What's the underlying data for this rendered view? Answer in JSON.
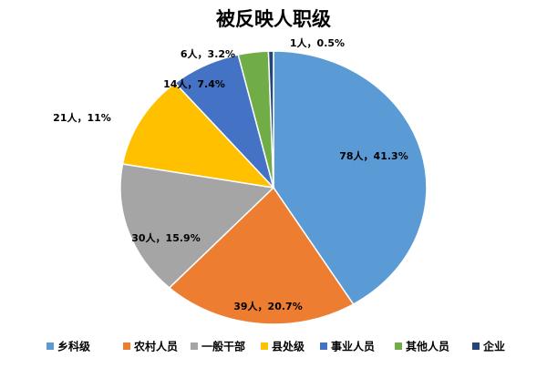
{
  "chart_data": {
    "type": "pie",
    "title": "被反映人职级",
    "categories": [
      "乡科级",
      "农村人员",
      "一般干部",
      "县处级",
      "事业人员",
      "其他人员",
      "企业"
    ],
    "values": [
      78,
      39,
      30,
      21,
      14,
      6,
      1
    ],
    "value_labels": [
      "78人，41.3%",
      "39人，20.7%",
      "30人，15.9%",
      "21人，11%",
      "14人，7.4%",
      "6人，3.2%",
      "1人，0.5%"
    ],
    "colors": [
      "#5b9bd5",
      "#ed7d31",
      "#a5a5a5",
      "#ffc000",
      "#4472c4",
      "#70ad47",
      "#264478"
    ],
    "legend": "bottom"
  }
}
